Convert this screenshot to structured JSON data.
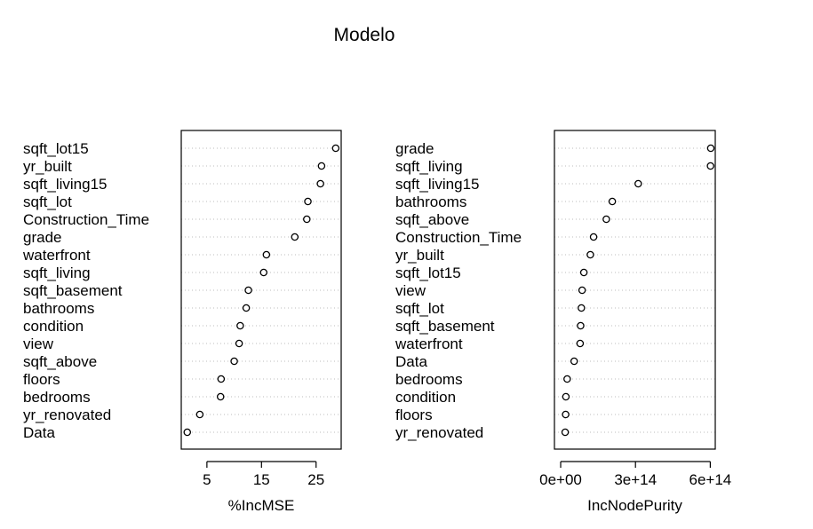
{
  "title": "Modelo",
  "chart_data": [
    {
      "type": "dotchart",
      "xlabel": "%IncMSE",
      "xlim": [
        0.3,
        29.6
      ],
      "xticks": [
        5,
        15,
        25
      ],
      "xtick_labels": [
        "5",
        "15",
        "25"
      ],
      "grid": "dotted",
      "categories": [
        "sqft_lot15",
        "yr_built",
        "sqft_living15",
        "sqft_lot",
        "Construction_Time",
        "grade",
        "waterfront",
        "sqft_living",
        "sqft_basement",
        "bathrooms",
        "condition",
        "view",
        "sqft_above",
        "floors",
        "bedrooms",
        "yr_renovated",
        "Data"
      ],
      "values": [
        28.6,
        26.0,
        25.8,
        23.5,
        23.3,
        21.1,
        15.9,
        15.4,
        12.6,
        12.2,
        11.1,
        10.9,
        10.0,
        7.6,
        7.5,
        3.7,
        1.4
      ]
    },
    {
      "type": "dotchart",
      "xlabel": "IncNodePurity",
      "xlim": [
        -25000000000000.0,
        620000000000000.0
      ],
      "xticks": [
        0,
        300000000000000.0,
        600000000000000.0
      ],
      "xtick_labels": [
        "0e+00",
        "3e+14",
        "6e+14"
      ],
      "grid": "dotted",
      "categories": [
        "grade",
        "sqft_living",
        "sqft_living15",
        "bathrooms",
        "sqft_above",
        "Construction_Time",
        "yr_built",
        "sqft_lot15",
        "view",
        "sqft_lot",
        "sqft_basement",
        "waterfront",
        "Data",
        "bedrooms",
        "condition",
        "floors",
        "yr_renovated"
      ],
      "values": [
        602000000000000.0,
        601000000000000.0,
        311000000000000.0,
        207000000000000.0,
        183000000000000.0,
        132000000000000.0,
        119000000000000.0,
        93000000000000.0,
        86000000000000.0,
        83000000000000.0,
        80000000000000.0,
        78000000000000.0,
        54000000000000.0,
        26000000000000.0,
        21000000000000.0,
        20000000000000.0,
        18000000000000.0
      ]
    }
  ]
}
